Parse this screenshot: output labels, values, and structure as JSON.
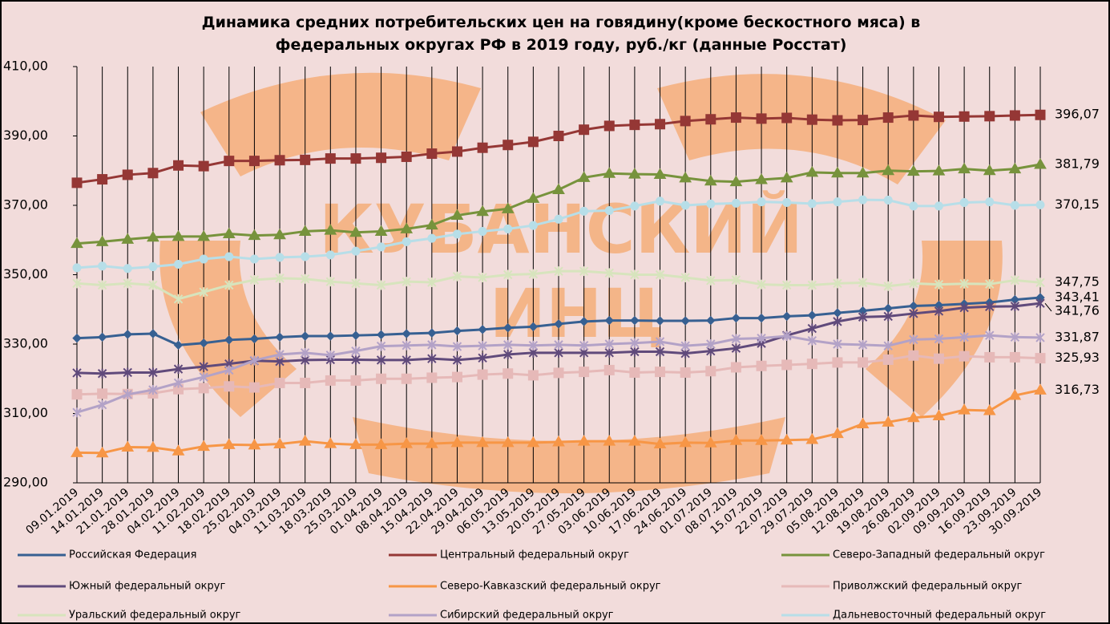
{
  "chart_data": {
    "type": "line",
    "title": [
      "Динамика средних потребительских цен на говядину(кроме бескостного мяса) в",
      "федеральных округах РФ в 2019 году, руб./кг (данные Росстат)"
    ],
    "watermark": [
      "КУБАНСКИЙ",
      "ИНЦ"
    ],
    "categories": [
      "09.01.2019",
      "14.01.2019",
      "21.01.2019",
      "28.01.2019",
      "04.02.2019",
      "11.02.2019",
      "18.02.2019",
      "25.02.2019",
      "04.03.2019",
      "11.03.2019",
      "18.03.2019",
      "25.03.2019",
      "01.04.2019",
      "08.04.2019",
      "15.04.2019",
      "22.04.2019",
      "29.04.2019",
      "06.05.2019",
      "13.05.2019",
      "20.05.2019",
      "27.05.2019",
      "03.06.2019",
      "10.06.2019",
      "17.06.2019",
      "24.06.2019",
      "01.07.2019",
      "08.07.2019",
      "15.07.2019",
      "22.07.2019",
      "29.07.2019",
      "05.08.2019",
      "12.08.2019",
      "19.08.2019",
      "26.08.2019",
      "02.09.2019",
      "09.09.2019",
      "16.09.2019",
      "23.09.2019",
      "30.09.2019"
    ],
    "ylim": [
      290,
      410
    ],
    "yticks": [
      {
        "value": 290,
        "label": "290,00"
      },
      {
        "value": 310,
        "label": "310,00"
      },
      {
        "value": 330,
        "label": "330,00"
      },
      {
        "value": 350,
        "label": "350,00"
      },
      {
        "value": 370,
        "label": "370,00"
      },
      {
        "value": 390,
        "label": "390,00"
      },
      {
        "value": 410,
        "label": "410,00"
      }
    ],
    "grid": "x",
    "series": [
      {
        "name": "Российская Федерация",
        "color": "#376092",
        "marker": "diamond",
        "values": [
          331.7,
          332,
          332.8,
          333,
          329.7,
          330.3,
          331.2,
          331.5,
          332,
          332.3,
          332.3,
          332.5,
          332.7,
          333,
          333.2,
          333.8,
          334.2,
          334.7,
          335,
          335.8,
          336.5,
          336.8,
          336.8,
          336.7,
          336.7,
          336.8,
          337.5,
          337.5,
          338,
          338.3,
          339,
          339.6,
          340.3,
          341,
          341.2,
          341.6,
          342,
          342.8,
          343.41
        ],
        "value_labels": [
          null,
          null,
          null,
          null,
          null,
          null,
          null,
          null,
          null,
          null,
          null,
          null,
          null,
          null,
          null,
          null,
          null,
          null,
          null,
          null,
          null,
          null,
          null,
          null,
          null,
          null,
          null,
          null,
          null,
          null,
          null,
          null,
          null,
          null,
          null,
          null,
          null,
          null,
          "343,41"
        ]
      },
      {
        "name": "Центральный федеральный округ",
        "color": "#953735",
        "marker": "square",
        "values": [
          376.5,
          377.5,
          378.8,
          379.3,
          381.5,
          381.3,
          382.8,
          382.8,
          383,
          383.1,
          383.5,
          383.5,
          383.7,
          384,
          384.9,
          385.5,
          386.6,
          387.4,
          388.3,
          390,
          391.8,
          392.9,
          393.2,
          393.4,
          394.3,
          394.8,
          395.3,
          395,
          395.2,
          394.7,
          394.5,
          394.6,
          395.3,
          395.9,
          395.5,
          395.6,
          395.7,
          395.9,
          396.07
        ],
        "value_labels": [
          null,
          null,
          null,
          null,
          null,
          null,
          null,
          null,
          null,
          null,
          null,
          null,
          null,
          null,
          null,
          null,
          null,
          null,
          null,
          null,
          null,
          null,
          null,
          null,
          null,
          null,
          null,
          null,
          null,
          null,
          null,
          null,
          null,
          null,
          null,
          null,
          null,
          null,
          "396,07"
        ]
      },
      {
        "name": "Северо-Западный федеральный округ",
        "color": "#77933c",
        "marker": "triangle",
        "values": [
          359,
          359.5,
          360.2,
          360.8,
          361,
          361,
          361.8,
          361.3,
          361.5,
          362.5,
          362.8,
          362.2,
          362.5,
          363.2,
          364.3,
          367.1,
          368.2,
          369,
          372,
          374.5,
          378,
          379.2,
          379,
          378.9,
          377.9,
          377,
          376.8,
          377.4,
          377.9,
          379.5,
          379.3,
          379.3,
          380,
          379.8,
          379.9,
          380.5,
          380,
          380.5,
          381.79
        ],
        "value_labels": [
          null,
          null,
          null,
          null,
          null,
          null,
          null,
          null,
          null,
          null,
          null,
          null,
          null,
          null,
          null,
          null,
          null,
          null,
          null,
          null,
          null,
          null,
          null,
          null,
          null,
          null,
          null,
          null,
          null,
          null,
          null,
          null,
          null,
          null,
          null,
          null,
          null,
          null,
          "381,79"
        ]
      },
      {
        "name": "Южный федеральный округ",
        "color": "#604a7b",
        "marker": "x",
        "values": [
          321.7,
          321.5,
          321.8,
          321.8,
          322.8,
          323.5,
          324.3,
          325.2,
          325,
          325.4,
          325.5,
          325.5,
          325.4,
          325.4,
          325.8,
          325.4,
          326,
          327,
          327.5,
          327.5,
          327.5,
          327.5,
          327.8,
          327.8,
          327.3,
          328,
          328.8,
          330.2,
          332.5,
          334.5,
          336.5,
          337.8,
          338,
          338.8,
          339.5,
          340.5,
          340.8,
          340.9,
          341.76
        ],
        "value_labels": [
          null,
          null,
          null,
          null,
          null,
          null,
          null,
          null,
          null,
          null,
          null,
          null,
          null,
          null,
          null,
          null,
          null,
          null,
          null,
          null,
          null,
          null,
          null,
          null,
          null,
          null,
          null,
          null,
          null,
          null,
          null,
          null,
          null,
          null,
          null,
          null,
          null,
          null,
          "341,76"
        ]
      },
      {
        "name": "Северо-Кавказский федеральный округ",
        "color": "#f79646",
        "marker": "triangle",
        "values": [
          298.7,
          298.6,
          300.3,
          300.2,
          299.2,
          300.5,
          301,
          300.9,
          301.2,
          302,
          301.3,
          301,
          301,
          301.3,
          301.3,
          301.6,
          301.6,
          301.6,
          301.6,
          301.8,
          302,
          302,
          302,
          301.2,
          301.6,
          301.5,
          302.2,
          302.2,
          302.3,
          302.5,
          304.2,
          307,
          307.5,
          308.8,
          309.3,
          311,
          310.8,
          315.2,
          316.73
        ],
        "value_labels": [
          null,
          null,
          null,
          null,
          null,
          null,
          null,
          null,
          null,
          null,
          null,
          null,
          null,
          null,
          null,
          null,
          null,
          null,
          null,
          null,
          null,
          null,
          null,
          null,
          null,
          null,
          null,
          null,
          null,
          null,
          null,
          null,
          null,
          null,
          null,
          null,
          null,
          null,
          "316,73"
        ]
      },
      {
        "name": "Приволжский федеральный округ",
        "color": "#e6b9b8",
        "marker": "square",
        "values": [
          315.5,
          315.7,
          315.6,
          315.8,
          317,
          317.3,
          317.8,
          317.5,
          318.8,
          318.8,
          319.5,
          319.5,
          320,
          320,
          320.3,
          320.5,
          321.2,
          321.5,
          321,
          321.7,
          322,
          322.5,
          321.8,
          322,
          321.8,
          322.2,
          323.3,
          323.7,
          324,
          324.3,
          324.7,
          324.7,
          325.5,
          326.7,
          325.8,
          326.5,
          326.2,
          326.2,
          325.93
        ],
        "value_labels": [
          null,
          null,
          null,
          null,
          null,
          null,
          null,
          null,
          null,
          null,
          null,
          null,
          null,
          null,
          null,
          null,
          null,
          null,
          null,
          null,
          null,
          null,
          null,
          null,
          null,
          null,
          null,
          null,
          null,
          null,
          null,
          null,
          null,
          null,
          null,
          null,
          null,
          null,
          "325,93"
        ]
      },
      {
        "name": "Уральский федеральный округ",
        "color": "#d7e4bd",
        "marker": "x",
        "values": [
          347.5,
          347,
          347.5,
          347,
          343,
          345,
          347,
          348.5,
          349,
          348.8,
          348,
          347.5,
          347,
          348,
          347.8,
          349.5,
          349.2,
          350,
          350.2,
          351,
          351,
          350.5,
          350,
          350,
          349.2,
          348.3,
          348.5,
          347.2,
          347,
          347,
          347.5,
          347.7,
          346.7,
          347.5,
          347.2,
          347.4,
          347.3,
          348.4,
          347.75
        ],
        "value_labels": [
          null,
          null,
          null,
          null,
          null,
          null,
          null,
          null,
          null,
          null,
          null,
          null,
          null,
          null,
          null,
          null,
          null,
          null,
          null,
          null,
          null,
          null,
          null,
          null,
          null,
          null,
          null,
          null,
          null,
          null,
          null,
          null,
          null,
          null,
          null,
          null,
          null,
          null,
          "347,75"
        ]
      },
      {
        "name": "Сибирский федеральный округ",
        "color": "#b3a2c7",
        "marker": "x",
        "values": [
          310.3,
          312.5,
          315.5,
          316.8,
          318.8,
          320.5,
          322.5,
          325.3,
          327,
          327.5,
          326.8,
          328,
          329.4,
          329.6,
          329.8,
          329.3,
          329.5,
          329.8,
          329.6,
          329.8,
          329.6,
          330,
          330.3,
          330.7,
          329.5,
          330,
          331.5,
          331.7,
          332.3,
          331,
          330,
          329.8,
          329.5,
          331.3,
          331.5,
          332,
          332.5,
          332,
          331.87
        ],
        "value_labels": [
          null,
          null,
          null,
          null,
          null,
          null,
          null,
          null,
          null,
          null,
          null,
          null,
          null,
          null,
          null,
          null,
          null,
          null,
          null,
          null,
          null,
          null,
          null,
          null,
          null,
          null,
          null,
          null,
          null,
          null,
          null,
          null,
          null,
          null,
          null,
          null,
          null,
          null,
          "331,87"
        ]
      },
      {
        "name": "Дальневосточный федеральный округ",
        "color": "#b7dee8",
        "marker": "circle",
        "values": [
          352,
          352.5,
          351.8,
          352.3,
          353,
          354.5,
          355.2,
          354.5,
          355,
          355.2,
          355.7,
          356.8,
          358,
          359.5,
          360.5,
          361.7,
          362.5,
          363.2,
          364.2,
          366,
          368.3,
          368.5,
          369.8,
          371.2,
          370,
          370.4,
          370.6,
          371,
          370.8,
          370.5,
          371,
          371.6,
          371.5,
          369.8,
          369.8,
          370.8,
          371,
          370,
          370.15
        ],
        "value_labels": [
          null,
          null,
          null,
          null,
          null,
          null,
          null,
          null,
          null,
          null,
          null,
          null,
          null,
          null,
          null,
          null,
          null,
          null,
          null,
          null,
          null,
          null,
          null,
          null,
          null,
          null,
          null,
          null,
          null,
          null,
          null,
          null,
          null,
          null,
          null,
          null,
          null,
          null,
          "370,15"
        ]
      }
    ]
  }
}
